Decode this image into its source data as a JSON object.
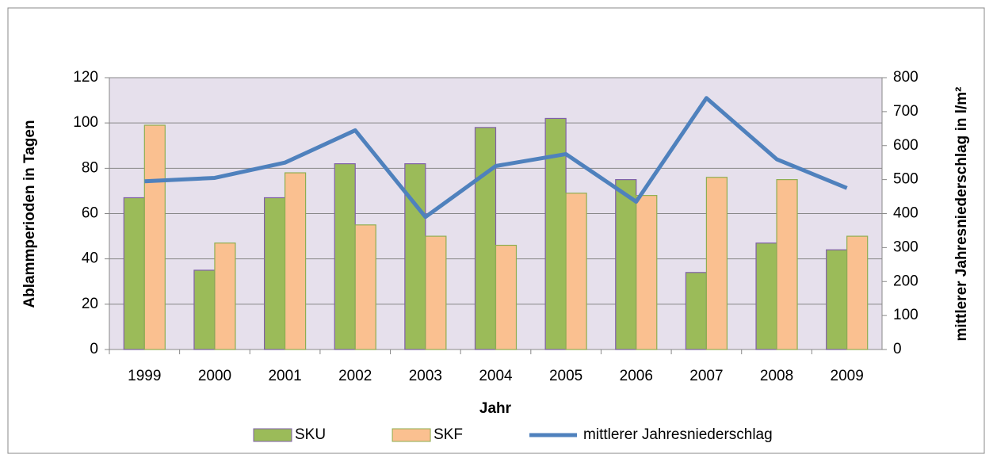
{
  "chart_data": {
    "type": "bar",
    "categories": [
      "1999",
      "2000",
      "2001",
      "2002",
      "2003",
      "2004",
      "2005",
      "2006",
      "2007",
      "2008",
      "2009"
    ],
    "series": [
      {
        "name": "SKU",
        "color": "#9bbb59",
        "edgecolor": "#7f5fa8",
        "values": [
          67,
          35,
          67,
          82,
          82,
          98,
          102,
          75,
          34,
          47,
          44
        ]
      },
      {
        "name": "SKF",
        "color": "#fac090",
        "edgecolor": "#8fae50",
        "values": [
          99,
          47,
          78,
          55,
          50,
          46,
          69,
          68,
          76,
          75,
          50
        ]
      },
      {
        "name": "mittlerer Jahresniederschlag",
        "type": "line",
        "axis": "y2",
        "color": "#4f81bd",
        "values": [
          495,
          505,
          550,
          645,
          390,
          540,
          575,
          435,
          740,
          560,
          475
        ]
      }
    ],
    "xlabel": "Jahr",
    "ylabel": "Ablammperioden in Tagen",
    "y2label": "mittlerer Jahresniederschlag in l/m²",
    "ylim": [
      0,
      120
    ],
    "yticks": [
      0,
      20,
      40,
      60,
      80,
      100,
      120
    ],
    "y2lim": [
      0,
      800
    ],
    "y2ticks": [
      0,
      100,
      200,
      300,
      400,
      500,
      600,
      700,
      800
    ],
    "grid": true,
    "legend": "bottom",
    "plot_background": "#e6e0ec"
  }
}
